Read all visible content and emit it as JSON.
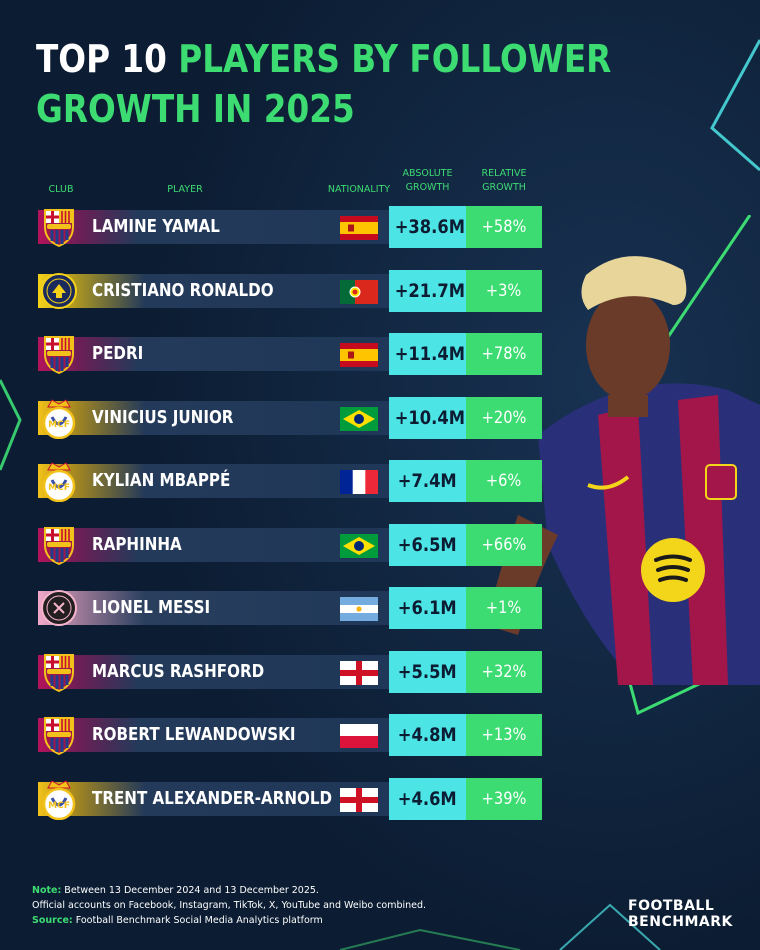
{
  "title": {
    "line1_white": "TOP 10",
    "line1_green": "PLAYERS BY FOLLOWER",
    "line2_green": "GROWTH IN 2025"
  },
  "headers": {
    "club": "CLUB",
    "player": "PLAYER",
    "nationality": "NATIONALITY",
    "absolute_l1": "ABSOLUTE",
    "absolute_l2": "GROWTH",
    "relative_l1": "RELATIVE",
    "relative_l2": "GROWTH"
  },
  "colors": {
    "background": "#0c1d33",
    "accent_green": "#3ddc73",
    "accent_cyan": "#4de4e6"
  },
  "chart_data": {
    "type": "table",
    "columns": [
      "CLUB",
      "PLAYER",
      "NATIONALITY",
      "ABSOLUTE GROWTH",
      "RELATIVE GROWTH"
    ],
    "rows": [
      {
        "club": "FC Barcelona",
        "crest": "barcelona-crest-icon",
        "player": "LAMINE YAMAL",
        "nationality": "Spain",
        "flag": "spain-flag-icon",
        "absolute": "+38.6M",
        "relative": "+58%"
      },
      {
        "club": "Al Nassr",
        "crest": "al-nassr-crest-icon",
        "player": "CRISTIANO RONALDO",
        "nationality": "Portugal",
        "flag": "portugal-flag-icon",
        "absolute": "+21.7M",
        "relative": "+3%"
      },
      {
        "club": "FC Barcelona",
        "crest": "barcelona-crest-icon",
        "player": "PEDRI",
        "nationality": "Spain",
        "flag": "spain-flag-icon",
        "absolute": "+11.4M",
        "relative": "+78%"
      },
      {
        "club": "Real Madrid",
        "crest": "real-madrid-crest-icon",
        "player": "VINICIUS JUNIOR",
        "nationality": "Brazil",
        "flag": "brazil-flag-icon",
        "absolute": "+10.4M",
        "relative": "+20%"
      },
      {
        "club": "Real Madrid",
        "crest": "real-madrid-crest-icon",
        "player": "KYLIAN MBAPPÉ",
        "nationality": "France",
        "flag": "france-flag-icon",
        "absolute": "+7.4M",
        "relative": "+6%"
      },
      {
        "club": "FC Barcelona",
        "crest": "barcelona-crest-icon",
        "player": "RAPHINHA",
        "nationality": "Brazil",
        "flag": "brazil-flag-icon",
        "absolute": "+6.5M",
        "relative": "+66%"
      },
      {
        "club": "Inter Miami",
        "crest": "inter-miami-crest-icon",
        "player": "LIONEL MESSI",
        "nationality": "Argentina",
        "flag": "argentina-flag-icon",
        "absolute": "+6.1M",
        "relative": "+1%"
      },
      {
        "club": "FC Barcelona",
        "crest": "barcelona-crest-icon",
        "player": "MARCUS RASHFORD",
        "nationality": "England",
        "flag": "england-flag-icon",
        "absolute": "+5.5M",
        "relative": "+32%"
      },
      {
        "club": "FC Barcelona",
        "crest": "barcelona-crest-icon",
        "player": "ROBERT LEWANDOWSKI",
        "nationality": "Poland",
        "flag": "poland-flag-icon",
        "absolute": "+4.8M",
        "relative": "+13%"
      },
      {
        "club": "Real Madrid",
        "crest": "real-madrid-crest-icon",
        "player": "TRENT ALEXANDER-ARNOLD",
        "nationality": "England",
        "flag": "england-flag-icon",
        "absolute": "+4.6M",
        "relative": "+39%"
      }
    ]
  },
  "footer": {
    "note_label": "Note:",
    "note_text": "Between 13 December 2024 and 13 December 2025.",
    "note_line2": "Official accounts on Facebook, Instagram, TikTok, X, YouTube and Weibo combined.",
    "source_label": "Source:",
    "source_text": "Football Benchmark Social Media Analytics platform"
  },
  "brand": {
    "line1": "FOOTBALL",
    "line2": "BENCHMARK"
  },
  "illustration": "player-photo"
}
